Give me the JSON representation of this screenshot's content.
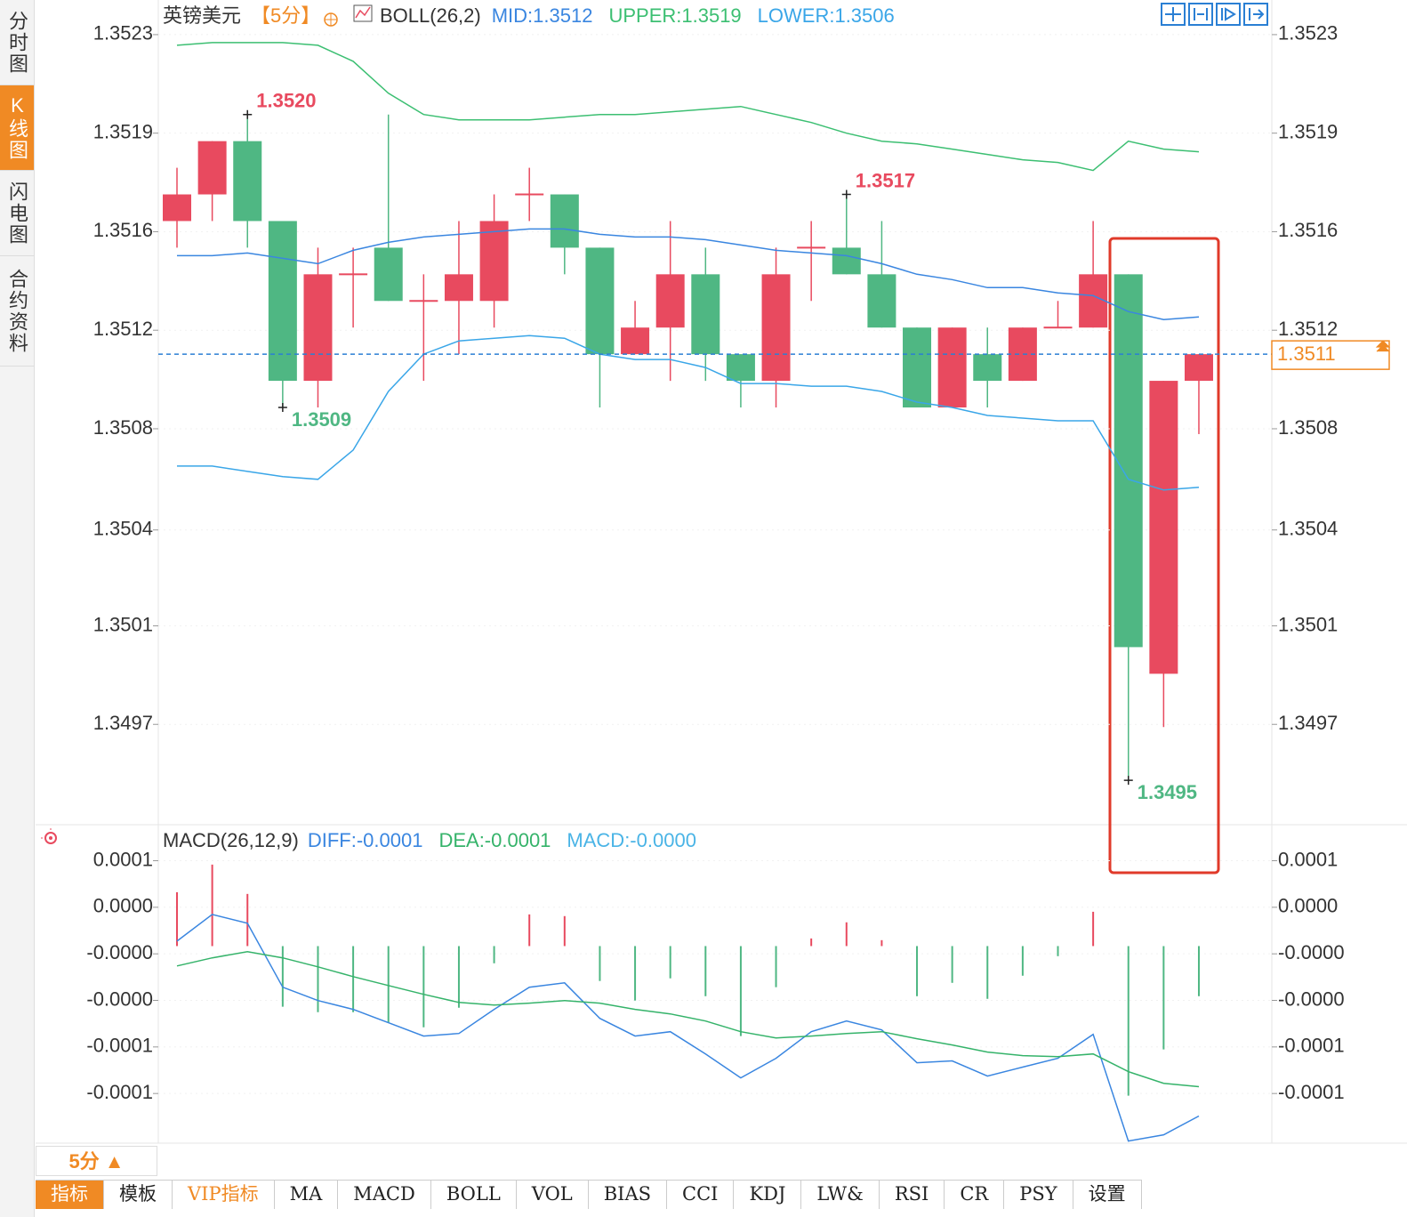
{
  "sidebar": [
    "分时图",
    "K线图",
    "闪电图",
    "合约资料"
  ],
  "sidebar_active": 1,
  "chart_data": [
    {
      "type": "candlestick",
      "title": "英镑美元",
      "subtitle": "【5分】",
      "indicator": "BOLL(26,2)",
      "up_color": "#e84a5f",
      "down_color": "#4fb783",
      "open": [
        1.3516,
        1.3517,
        1.3519,
        1.3516,
        1.351,
        1.3514,
        1.3515,
        1.3513,
        1.3513,
        1.3513,
        1.3517,
        1.3517,
        1.3515,
        1.3511,
        1.3512,
        1.3514,
        1.3511,
        1.351,
        1.3515,
        1.3515,
        1.3514,
        1.3512,
        1.3509,
        1.3511,
        1.351,
        1.3512,
        1.3512,
        1.3514,
        1.3499,
        1.351
      ],
      "high": [
        1.3518,
        1.3519,
        1.352,
        1.3516,
        1.3515,
        1.3515,
        1.352,
        1.3514,
        1.3516,
        1.3517,
        1.3518,
        1.3517,
        1.3515,
        1.3513,
        1.3516,
        1.3515,
        1.3511,
        1.3515,
        1.3516,
        1.3517,
        1.3516,
        1.3512,
        1.3512,
        1.3512,
        1.3512,
        1.3513,
        1.3516,
        1.3514,
        1.351,
        1.3511
      ],
      "low": [
        1.3515,
        1.3516,
        1.3515,
        1.3509,
        1.3509,
        1.3512,
        1.3513,
        1.351,
        1.3511,
        1.3512,
        1.3516,
        1.3514,
        1.3509,
        1.3511,
        1.351,
        1.351,
        1.3509,
        1.3509,
        1.3513,
        1.3514,
        1.3512,
        1.3509,
        1.3509,
        1.3509,
        1.351,
        1.3512,
        1.3512,
        1.3495,
        1.3497,
        1.3508
      ],
      "close": [
        1.3517,
        1.3519,
        1.3516,
        1.351,
        1.3514,
        1.3514,
        1.3513,
        1.3513,
        1.3514,
        1.3516,
        1.3517,
        1.3515,
        1.3511,
        1.3512,
        1.3514,
        1.3511,
        1.351,
        1.3514,
        1.3515,
        1.3514,
        1.3512,
        1.3509,
        1.3512,
        1.351,
        1.3512,
        1.3512,
        1.3514,
        1.35,
        1.351,
        1.3511
      ],
      "series": [
        {
          "name": "MID:1.3512",
          "color": "#3a86e0",
          "values": [
            1.35147,
            1.35147,
            1.35148,
            1.35146,
            1.35144,
            1.35149,
            1.35152,
            1.35154,
            1.35155,
            1.35156,
            1.35157,
            1.35157,
            1.35155,
            1.35154,
            1.35154,
            1.35153,
            1.35151,
            1.35149,
            1.35148,
            1.35147,
            1.35144,
            1.3514,
            1.35138,
            1.35135,
            1.35135,
            1.35133,
            1.35132,
            1.35126,
            1.35123,
            1.35124
          ]
        },
        {
          "name": "UPPER:1.3519",
          "color": "#3cbf72",
          "values": [
            1.35226,
            1.35227,
            1.35227,
            1.35227,
            1.35226,
            1.3522,
            1.35208,
            1.352,
            1.35198,
            1.35198,
            1.35198,
            1.35199,
            1.352,
            1.352,
            1.35201,
            1.35202,
            1.35203,
            1.352,
            1.35197,
            1.35193,
            1.3519,
            1.35189,
            1.35187,
            1.35185,
            1.35183,
            1.35182,
            1.35179,
            1.3519,
            1.35187,
            1.35186
          ]
        },
        {
          "name": "LOWER:1.3506",
          "color": "#3aa6e8",
          "values": [
            1.35068,
            1.35068,
            1.35066,
            1.35064,
            1.35063,
            1.35074,
            1.35096,
            1.3511,
            1.35115,
            1.35116,
            1.35117,
            1.35116,
            1.3511,
            1.35108,
            1.35108,
            1.35105,
            1.35099,
            1.35099,
            1.35098,
            1.35098,
            1.35096,
            1.35092,
            1.3509,
            1.35087,
            1.35086,
            1.35085,
            1.35085,
            1.35063,
            1.35059,
            1.3506
          ]
        }
      ],
      "ylim": [
        1.34934,
        1.35243
      ],
      "yticks": [
        {
          "value": 1.3523,
          "label": "1.3523"
        },
        {
          "value": 1.35193,
          "label": "1.3519"
        },
        {
          "value": 1.35156,
          "label": "1.3516"
        },
        {
          "value": 1.35119,
          "label": "1.3512"
        },
        {
          "value": 1.35082,
          "label": "1.3508"
        },
        {
          "value": 1.35044,
          "label": "1.3504"
        },
        {
          "value": 1.35008,
          "label": "1.3501"
        },
        {
          "value": 1.34971,
          "label": "1.3497"
        }
      ],
      "grid": true,
      "last_price": 1.3511,
      "last_price_color": "#f08a24",
      "annotations": [
        {
          "label": "1.3520",
          "value": 1.352,
          "candle": 2
        },
        {
          "label": "1.3509",
          "value": 1.3509,
          "candle": 3
        },
        {
          "label": "1.3517",
          "value": 1.3517,
          "candle": 19
        },
        {
          "label": "1.3495",
          "value": 1.3495,
          "candle": 27
        }
      ]
    },
    {
      "type": "macd",
      "title": "MACD(26,12,9)",
      "up_color": "#e84a5f",
      "down_color": "#4fb783",
      "histogram_name": "MACD:-0.0000",
      "histogram_label_color": "#4ab4e6",
      "histogram": [
        3.47e-05,
        5.25e-05,
        3.36e-05,
        -3.91e-05,
        -4.26e-05,
        -4.26e-05,
        -4.94e-05,
        -5.23e-05,
        -3.97e-05,
        -1.11e-05,
        2.04e-05,
        1.93e-05,
        -2.25e-05,
        -3.51e-05,
        -2.08e-05,
        -3.23e-05,
        -5.8e-05,
        -2.65e-05,
        4.9e-06,
        1.53e-05,
        3.8e-06,
        -3.23e-05,
        -2.37e-05,
        -3.4e-05,
        -1.91e-05,
        -6.5e-06,
        2.21e-05,
        -9.64e-05,
        -6.66e-05,
        -3.23e-05
      ],
      "series": [
        {
          "name": "DIFF:-0.0001",
          "color": "#3a86e0",
          "values": [
            3.2e-06,
            2.04e-05,
            1.47e-05,
            -2.65e-05,
            -3.51e-05,
            -4.08e-05,
            -4.94e-05,
            -5.8e-05,
            -5.63e-05,
            -4.08e-05,
            -2.65e-05,
            -2.37e-05,
            -4.66e-05,
            -5.8e-05,
            -5.52e-05,
            -6.95e-05,
            -8.49e-05,
            -7.23e-05,
            -5.52e-05,
            -4.83e-05,
            -5.4e-05,
            -7.52e-05,
            -7.4e-05,
            -8.38e-05,
            -7.8e-05,
            -7.23e-05,
            -5.69e-05,
            -0.0001256,
            -0.0001216,
            -0.0001095
          ]
        },
        {
          "name": "DEA:-0.0001",
          "color": "#35b36a",
          "values": [
            -1.28e-05,
            -7.6e-06,
            -3.6e-06,
            -7.6e-06,
            -1.34e-05,
            -1.97e-05,
            -2.54e-05,
            -3.11e-05,
            -3.63e-05,
            -3.8e-05,
            -3.68e-05,
            -3.51e-05,
            -3.68e-05,
            -4.08e-05,
            -4.37e-05,
            -4.83e-05,
            -5.52e-05,
            -5.92e-05,
            -5.8e-05,
            -5.63e-05,
            -5.52e-05,
            -5.97e-05,
            -6.37e-05,
            -6.83e-05,
            -7.06e-05,
            -7.12e-05,
            -6.95e-05,
            -8.09e-05,
            -8.84e-05,
            -9.06e-05
          ]
        }
      ],
      "ylim": [
        -0.000127,
        7.65e-05
      ],
      "yticks": [
        {
          "value": 5.5e-05,
          "label": "0.0001"
        },
        {
          "value": 2.5e-05,
          "label": "0.0000"
        },
        {
          "value": -5e-06,
          "label": "-0.0000"
        },
        {
          "value": -3.5e-05,
          "label": "-0.0000"
        },
        {
          "value": -6.5e-05,
          "label": "-0.0001"
        },
        {
          "value": -9.5e-05,
          "label": "-0.0001"
        }
      ],
      "grid": true
    }
  ],
  "footer": {
    "period": "5分 ▲",
    "tabs": [
      "指标",
      "模板",
      "VIP指标",
      "MA",
      "MACD",
      "BOLL",
      "VOL",
      "BIAS",
      "CCI",
      "KDJ",
      "LW&",
      "RSI",
      "CR",
      "PSY",
      "设置"
    ],
    "active_tab": 0,
    "highlight_tab": 2
  }
}
